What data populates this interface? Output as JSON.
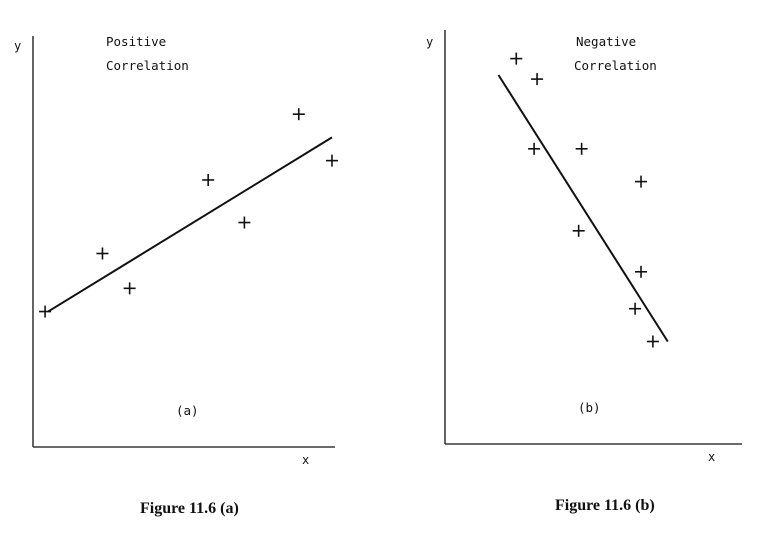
{
  "chart_data": [
    {
      "type": "scatter",
      "panel_label": "(a)",
      "title_lines": [
        "Positive",
        "Correlation"
      ],
      "xlabel": "x",
      "ylabel": "y",
      "caption": "Figure 11.6 (a)",
      "grid": false,
      "axis_tick_labels": false,
      "xlim": [
        0,
        10
      ],
      "ylim": [
        0,
        10
      ],
      "points": [
        {
          "x": 0.4,
          "y": 3.5
        },
        {
          "x": 2.3,
          "y": 5.0
        },
        {
          "x": 3.2,
          "y": 4.1
        },
        {
          "x": 5.8,
          "y": 6.9
        },
        {
          "x": 7.0,
          "y": 5.8
        },
        {
          "x": 8.8,
          "y": 8.6
        },
        {
          "x": 9.9,
          "y": 7.4
        }
      ],
      "trend_line": [
        [
          0.5,
          3.5
        ],
        [
          9.9,
          8.0
        ]
      ]
    },
    {
      "type": "scatter",
      "panel_label": "(b)",
      "title_lines": [
        "Negative",
        "Correlation"
      ],
      "xlabel": "x",
      "ylabel": "y",
      "caption": "Figure 11.6 (b)",
      "grid": false,
      "axis_tick_labels": false,
      "xlim": [
        0,
        10
      ],
      "ylim": [
        0,
        10
      ],
      "points": [
        {
          "x": 2.4,
          "y": 9.4
        },
        {
          "x": 3.1,
          "y": 8.9
        },
        {
          "x": 3.0,
          "y": 7.2
        },
        {
          "x": 4.6,
          "y": 7.2
        },
        {
          "x": 6.6,
          "y": 6.4
        },
        {
          "x": 4.5,
          "y": 5.2
        },
        {
          "x": 6.6,
          "y": 4.2
        },
        {
          "x": 6.4,
          "y": 3.3
        },
        {
          "x": 7.0,
          "y": 2.5
        }
      ],
      "trend_line": [
        [
          1.8,
          9.0
        ],
        [
          7.5,
          2.5
        ]
      ]
    }
  ]
}
